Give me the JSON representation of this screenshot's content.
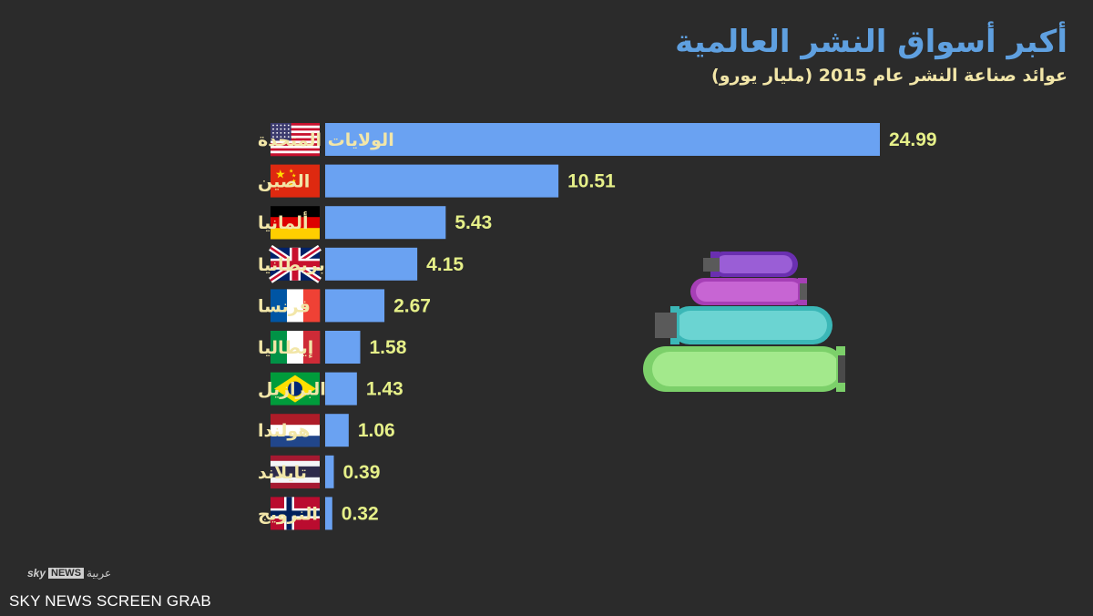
{
  "title": "أكبر أسواق النشر العالمية",
  "subtitle": "عوائد صناعة النشر عام 2015 (مليار يورو)",
  "logo": {
    "sky": "sky",
    "news": "NEWS",
    "arabic": "عربية"
  },
  "credit": "SKY NEWS SCREEN GRAB",
  "colors": {
    "background": "#2b2b2b",
    "bar": "#6aa2f2",
    "title": "#5fa0e0",
    "label": "#f2e6a8",
    "value": "#e6f089"
  },
  "chart_data": {
    "type": "bar",
    "orientation": "horizontal",
    "categories": [
      "الولايات المتحدة",
      "الصين",
      "ألمانيا",
      "بريطانيا",
      "فرنسا",
      "إيطاليا",
      "البرازيل",
      "هولندا",
      "تايلاند",
      "النرويج"
    ],
    "flags": [
      "usa-flag-icon",
      "china-flag-icon",
      "germany-flag-icon",
      "uk-flag-icon",
      "france-flag-icon",
      "italy-flag-icon",
      "brazil-flag-icon",
      "netherlands-flag-icon",
      "thailand-flag-icon",
      "norway-flag-icon"
    ],
    "values": [
      24.99,
      10.51,
      5.43,
      4.15,
      2.67,
      1.58,
      1.43,
      1.06,
      0.39,
      0.32
    ],
    "value_labels": [
      "24.99",
      "10.51",
      "5.43",
      "4.15",
      "2.67",
      "1.58",
      "1.43",
      "1.06",
      "0.39",
      "0.32"
    ],
    "unit": "مليار يورو",
    "grid": false,
    "legend": "none"
  }
}
